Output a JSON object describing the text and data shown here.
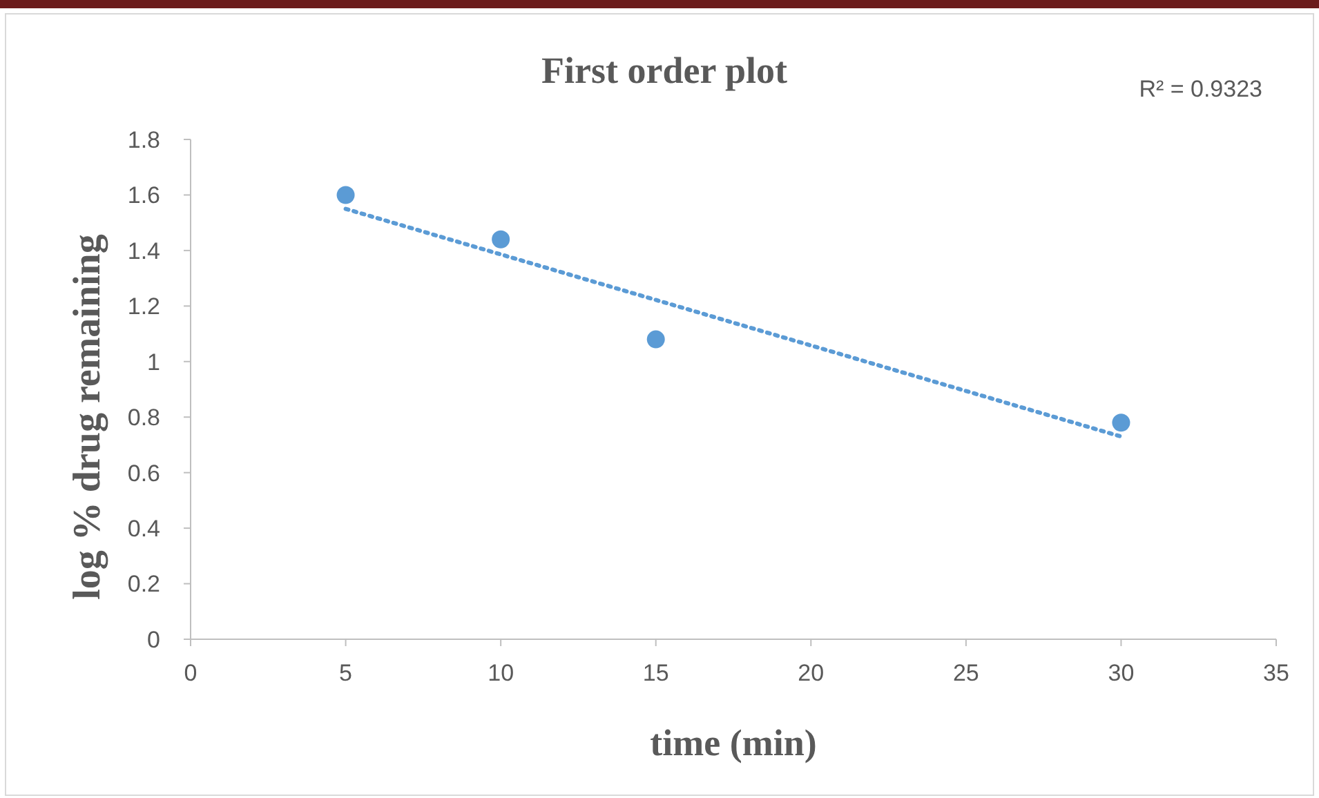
{
  "chart_data": {
    "type": "scatter",
    "title": "First order plot",
    "xlabel": "time (min)",
    "ylabel": "log % drug remaining",
    "annotations": [
      "R² = 0.9323"
    ],
    "x": [
      5,
      10,
      15,
      30
    ],
    "series": [
      {
        "color": "#5b9bd5",
        "values": [
          1.6,
          1.44,
          1.08,
          0.78
        ],
        "marker": "circle"
      },
      {
        "type": "line",
        "color": "#5b9bd5",
        "x": [
          5,
          30
        ],
        "values": [
          1.55,
          0.73
        ],
        "line_style": "dotted"
      }
    ],
    "xlim": [
      0,
      35
    ],
    "xticks": [
      0,
      5,
      10,
      15,
      20,
      25,
      30,
      35
    ],
    "ylim": [
      0,
      1.8
    ],
    "yticks": [
      0,
      0.2,
      0.4,
      0.6,
      0.8,
      1,
      1.2,
      1.4,
      1.6,
      1.8
    ],
    "grid": false
  }
}
